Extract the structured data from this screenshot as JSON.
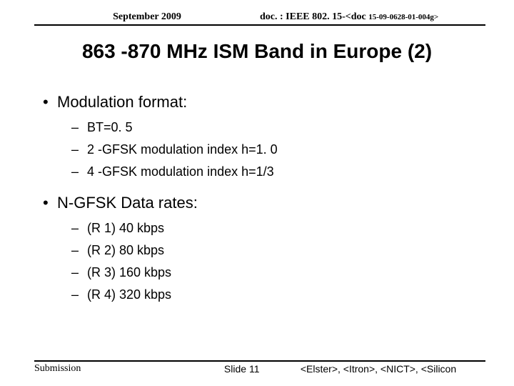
{
  "header": {
    "date": "September 2009",
    "doc_prefix": "doc. : IEEE 802. 15-<doc ",
    "doc_sub": "15-09-0628-01-004g>"
  },
  "title": "863 -870 MHz ISM Band in Europe (2)",
  "sections": [
    {
      "heading": "Modulation format:",
      "items": [
        "BT=0. 5",
        "2 -GFSK modulation index h=1. 0",
        "4 -GFSK modulation index h=1/3"
      ]
    },
    {
      "heading": "N-GFSK Data rates:",
      "items": [
        " (R 1) 40 kbps",
        " (R 2) 80 kbps",
        " (R 3) 160 kbps",
        " (R 4) 320 kbps"
      ]
    }
  ],
  "footer": {
    "left": "Submission",
    "slide": "Slide 11",
    "right": "<Elster>, <Itron>, <NICT>, <Silicon"
  }
}
